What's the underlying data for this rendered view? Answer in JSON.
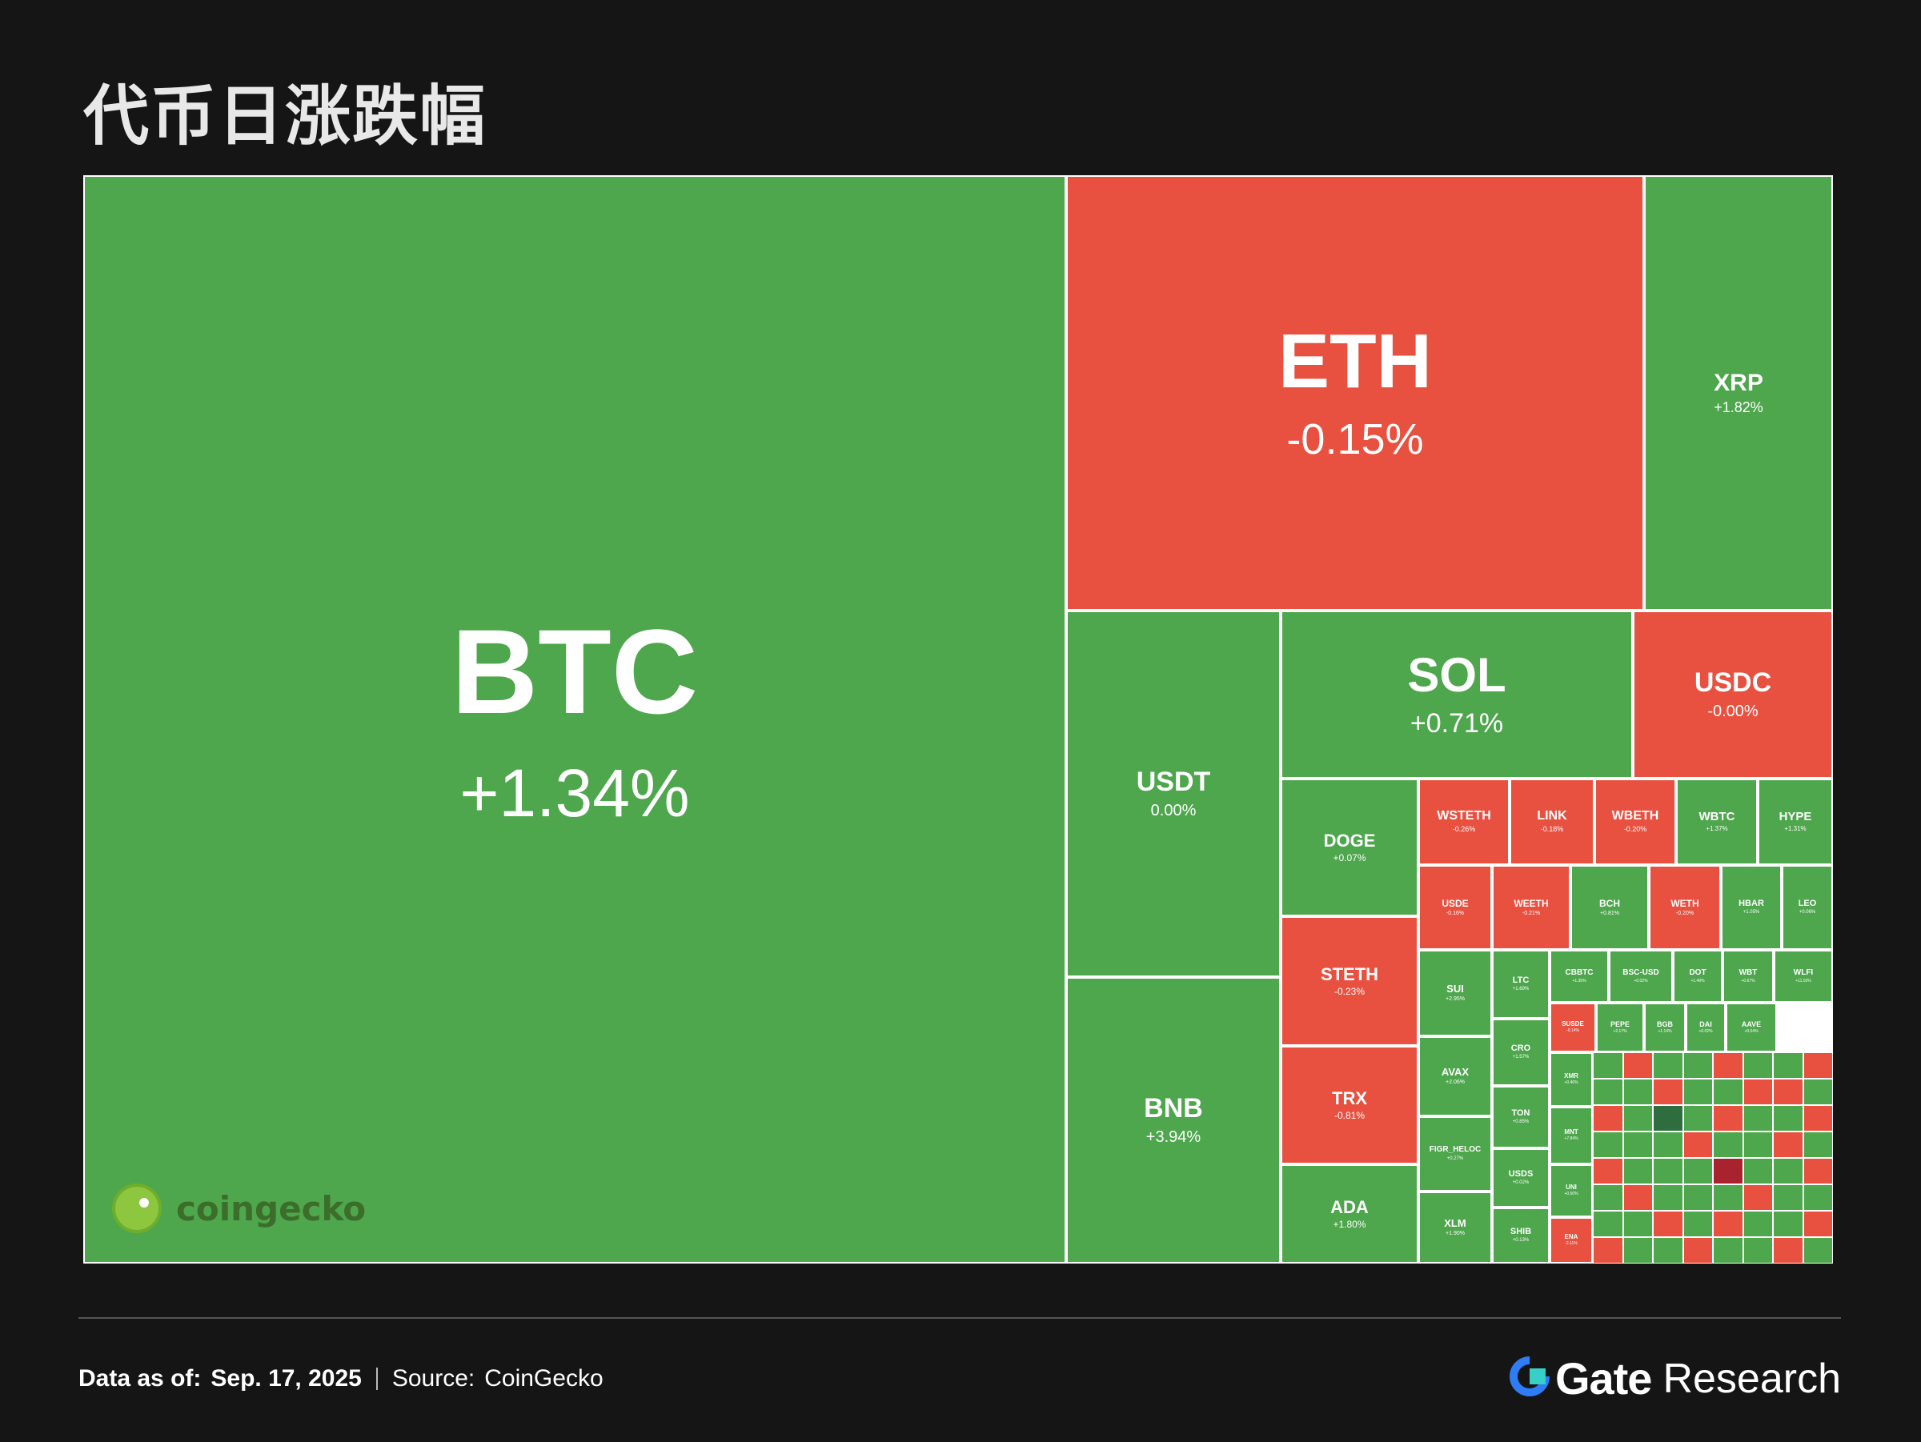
{
  "title": "代币日涨跌幅",
  "footer": {
    "date_label": "Data as of:",
    "date_value": "Sep. 17, 2025",
    "source_label": "Source:",
    "source_value": "CoinGecko"
  },
  "watermark": "coingecko",
  "brand": {
    "name": "Gate",
    "suffix": "Research"
  },
  "colors": {
    "background": "#151515",
    "gain": "#4ea64d",
    "loss": "#e85140",
    "gain_dark": "#2e6e3e",
    "loss_dark": "#a8232e"
  },
  "chart_data": {
    "type": "treemap",
    "title": "代币日涨跌幅",
    "items": [
      {
        "symbol": "BTC",
        "change": "+1.34%"
      },
      {
        "symbol": "ETH",
        "change": "-0.15%"
      },
      {
        "symbol": "XRP",
        "change": "+1.82%"
      },
      {
        "symbol": "USDT",
        "change": "0.00%"
      },
      {
        "symbol": "SOL",
        "change": "+0.71%"
      },
      {
        "symbol": "USDC",
        "change": "-0.00%"
      },
      {
        "symbol": "BNB",
        "change": "+3.94%"
      },
      {
        "symbol": "DOGE",
        "change": "+0.07%"
      },
      {
        "symbol": "STETH",
        "change": "-0.23%"
      },
      {
        "symbol": "TRX",
        "change": "-0.81%"
      },
      {
        "symbol": "ADA",
        "change": "+1.80%"
      },
      {
        "symbol": "WSTETH",
        "change": "-0.26%"
      },
      {
        "symbol": "LINK",
        "change": "-0.18%"
      },
      {
        "symbol": "WBETH",
        "change": "-0.20%"
      },
      {
        "symbol": "WBTC",
        "change": "+1.37%"
      },
      {
        "symbol": "HYPE",
        "change": "+1.31%"
      },
      {
        "symbol": "USDE",
        "change": "-0.16%"
      },
      {
        "symbol": "WEETH",
        "change": "-0.21%"
      },
      {
        "symbol": "BCH",
        "change": "+0.81%"
      },
      {
        "symbol": "WETH",
        "change": "-0.20%"
      },
      {
        "symbol": "HBAR",
        "change": "+1.05%"
      },
      {
        "symbol": "LEO",
        "change": "+0.06%"
      },
      {
        "symbol": "SUI",
        "change": "+2.95%"
      },
      {
        "symbol": "AVAX",
        "change": "+2.06%"
      },
      {
        "symbol": "FIGR_HELOC",
        "change": "+0.27%"
      },
      {
        "symbol": "XLM",
        "change": "+1.90%"
      },
      {
        "symbol": "LTC",
        "change": "+1.69%"
      },
      {
        "symbol": "CRO",
        "change": "+1.57%"
      },
      {
        "symbol": "TON",
        "change": "+0.85%"
      },
      {
        "symbol": "USDS",
        "change": "+0.02%"
      },
      {
        "symbol": "SHIB",
        "change": "+0.13%"
      },
      {
        "symbol": "CBBTC",
        "change": "+1.35%"
      },
      {
        "symbol": "BSC-USD",
        "change": "+0.02%"
      },
      {
        "symbol": "DOT",
        "change": "+1.49%"
      },
      {
        "symbol": "WBT",
        "change": "+0.67%"
      },
      {
        "symbol": "WLFI",
        "change": "+11.03%"
      },
      {
        "symbol": "SUSDE",
        "change": "-0.14%"
      },
      {
        "symbol": "PEPE",
        "change": "+2.17%"
      },
      {
        "symbol": "BGB",
        "change": "+1.14%"
      },
      {
        "symbol": "DAI",
        "change": "+0.02%"
      },
      {
        "symbol": "AAVE",
        "change": "+0.54%"
      },
      {
        "symbol": "XMR",
        "change": "+0.46%"
      },
      {
        "symbol": "MNT",
        "change": "+7.84%"
      },
      {
        "symbol": "UNI",
        "change": "+0.50%"
      },
      {
        "symbol": "ENA",
        "change": "-2.11%"
      }
    ]
  }
}
